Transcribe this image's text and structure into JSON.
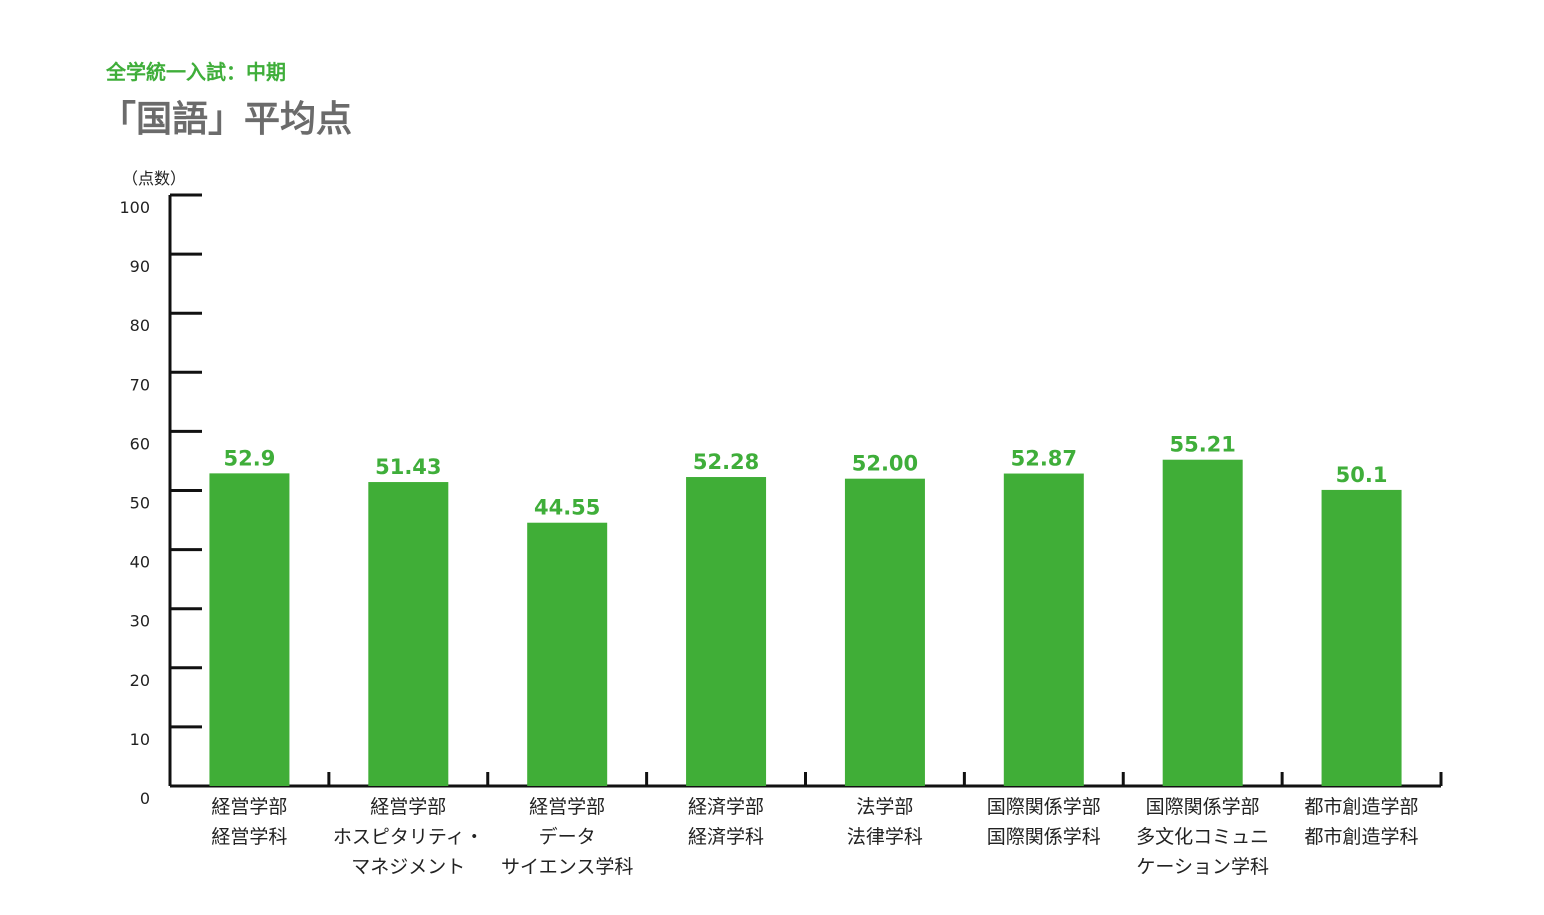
{
  "subtitle": "全学統一入試：中期",
  "title": "「国語」平均点",
  "colors": {
    "bar": "#40ae37",
    "value_label": "#3fae3a",
    "axis": "#111111",
    "text": "#222222",
    "title": "#6b6b6b"
  },
  "chart_data": {
    "type": "bar",
    "title": "「国語」平均点",
    "subtitle": "全学統一入試：中期",
    "ylabel": "（点数）",
    "xlabel": "",
    "ylim": [
      0,
      100
    ],
    "yticks": [
      0,
      10,
      20,
      30,
      40,
      50,
      60,
      70,
      80,
      90,
      100
    ],
    "grid": false,
    "legend": "none",
    "categories": [
      [
        "経営学部",
        "経営学科"
      ],
      [
        "経営学部",
        "ホスピタリティ・",
        "マネジメント"
      ],
      [
        "経営学部",
        "データ",
        "サイエンス学科"
      ],
      [
        "経済学部",
        "経済学科"
      ],
      [
        "法学部",
        "法律学科"
      ],
      [
        "国際関係学部",
        "国際関係学科"
      ],
      [
        "国際関係学部",
        "多文化コミュニ",
        "ケーション学科"
      ],
      [
        "都市創造学部",
        "都市創造学科"
      ]
    ],
    "values": [
      52.9,
      51.43,
      44.55,
      52.28,
      52.0,
      52.87,
      55.21,
      50.1
    ],
    "value_labels": [
      "52.9",
      "51.43",
      "44.55",
      "52.28",
      "52.00",
      "52.87",
      "55.21",
      "50.1"
    ]
  }
}
